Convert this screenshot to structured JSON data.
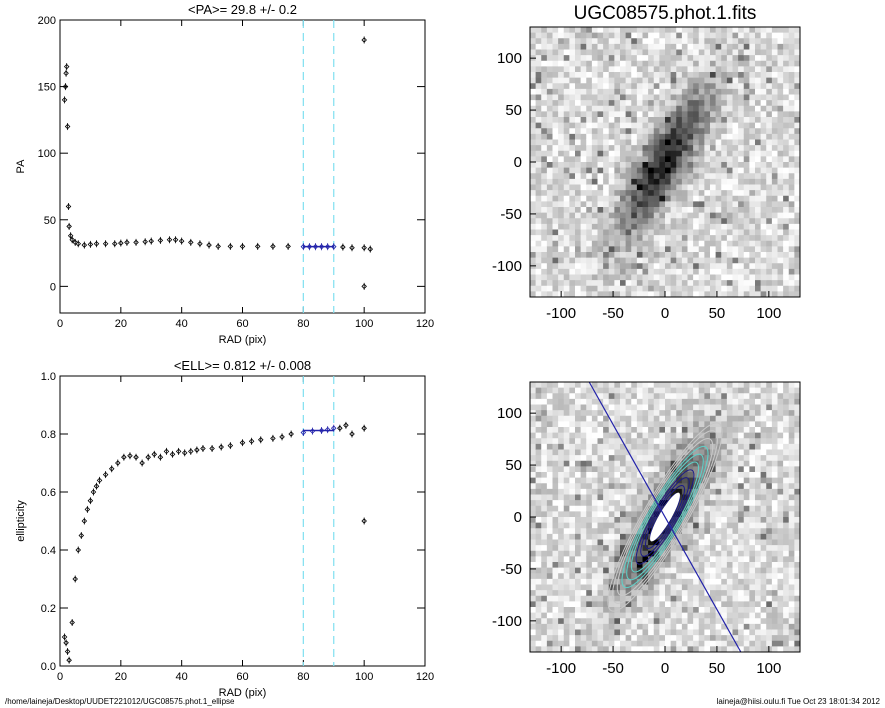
{
  "chart_data": [
    {
      "type": "scatter",
      "title": "<PA>=  29.8 +/-   0.2",
      "xlabel": "RAD (pix)",
      "ylabel": "PA",
      "xlim": [
        0,
        120
      ],
      "ylim": [
        -20,
        200
      ],
      "xticks": [
        0,
        20,
        40,
        60,
        80,
        100,
        120
      ],
      "yticks": [
        0,
        50,
        100,
        150,
        200
      ],
      "vlines": [
        80,
        90
      ],
      "fit_range": [
        80,
        90
      ],
      "fit_value": 29.8,
      "points": [
        [
          1.5,
          140
        ],
        [
          1.8,
          150
        ],
        [
          2.0,
          160
        ],
        [
          2.2,
          165
        ],
        [
          2.5,
          120
        ],
        [
          2.8,
          60
        ],
        [
          3.0,
          45
        ],
        [
          3.5,
          38
        ],
        [
          4,
          35
        ],
        [
          5,
          33
        ],
        [
          6,
          32
        ],
        [
          8,
          31
        ],
        [
          10,
          31.5
        ],
        [
          12,
          32
        ],
        [
          15,
          32
        ],
        [
          18,
          32
        ],
        [
          20,
          32.5
        ],
        [
          22,
          33
        ],
        [
          25,
          33
        ],
        [
          28,
          33.5
        ],
        [
          30,
          34
        ],
        [
          33,
          34.5
        ],
        [
          36,
          35
        ],
        [
          38,
          35
        ],
        [
          40,
          34
        ],
        [
          43,
          33
        ],
        [
          46,
          32
        ],
        [
          49,
          31
        ],
        [
          52,
          30
        ],
        [
          56,
          30
        ],
        [
          60,
          30
        ],
        [
          65,
          30
        ],
        [
          70,
          30
        ],
        [
          75,
          30
        ],
        [
          80,
          29.8
        ],
        [
          82,
          29.8
        ],
        [
          84,
          29.8
        ],
        [
          86,
          29.8
        ],
        [
          88,
          29.8
        ],
        [
          90,
          29.8
        ],
        [
          93,
          29.5
        ],
        [
          96,
          29
        ],
        [
          100,
          29
        ],
        [
          100,
          0
        ],
        [
          100,
          185
        ],
        [
          102,
          28
        ]
      ]
    },
    {
      "type": "scatter",
      "title": "<ELL>= 0.812 +/-  0.008",
      "xlabel": "RAD (pix)",
      "ylabel": "ellipticity",
      "xlim": [
        0,
        120
      ],
      "ylim": [
        0,
        1.0
      ],
      "xticks": [
        0,
        20,
        40,
        60,
        80,
        100,
        120
      ],
      "yticks": [
        0.0,
        0.2,
        0.4,
        0.6,
        0.8,
        1.0
      ],
      "vlines": [
        80,
        90
      ],
      "fit_range": [
        80,
        90
      ],
      "fit_value": 0.812,
      "points": [
        [
          1.5,
          0.1
        ],
        [
          2,
          0.08
        ],
        [
          2.5,
          0.05
        ],
        [
          3,
          0.02
        ],
        [
          4,
          0.15
        ],
        [
          5,
          0.3
        ],
        [
          6,
          0.4
        ],
        [
          7,
          0.45
        ],
        [
          8,
          0.5
        ],
        [
          9,
          0.54
        ],
        [
          10,
          0.57
        ],
        [
          11,
          0.6
        ],
        [
          12,
          0.62
        ],
        [
          13,
          0.64
        ],
        [
          15,
          0.66
        ],
        [
          17,
          0.68
        ],
        [
          19,
          0.7
        ],
        [
          21,
          0.72
        ],
        [
          23,
          0.725
        ],
        [
          25,
          0.72
        ],
        [
          27,
          0.7
        ],
        [
          29,
          0.72
        ],
        [
          31,
          0.73
        ],
        [
          33,
          0.72
        ],
        [
          35,
          0.74
        ],
        [
          37,
          0.73
        ],
        [
          39,
          0.74
        ],
        [
          41,
          0.735
        ],
        [
          43,
          0.74
        ],
        [
          45,
          0.745
        ],
        [
          47,
          0.75
        ],
        [
          50,
          0.75
        ],
        [
          53,
          0.755
        ],
        [
          56,
          0.76
        ],
        [
          60,
          0.77
        ],
        [
          63,
          0.775
        ],
        [
          66,
          0.78
        ],
        [
          70,
          0.785
        ],
        [
          73,
          0.79
        ],
        [
          76,
          0.8
        ],
        [
          80,
          0.805
        ],
        [
          83,
          0.81
        ],
        [
          86,
          0.812
        ],
        [
          88,
          0.815
        ],
        [
          90,
          0.82
        ],
        [
          92,
          0.82
        ],
        [
          94,
          0.83
        ],
        [
          96,
          0.8
        ],
        [
          100,
          0.82
        ],
        [
          100,
          0.5
        ]
      ]
    },
    {
      "type": "heatmap",
      "title": "UGC08575.phot.1.fits",
      "xlim": [
        -130,
        130
      ],
      "ylim": [
        -130,
        130
      ],
      "xticks": [
        -100,
        -50,
        0,
        50,
        100
      ],
      "yticks": [
        -100,
        -50,
        0,
        50,
        100
      ],
      "galaxy_pa_deg": 30,
      "galaxy_ellipticity": 0.812
    },
    {
      "type": "heatmap",
      "xlim": [
        -130,
        130
      ],
      "ylim": [
        -130,
        130
      ],
      "xticks": [
        -100,
        -50,
        0,
        50,
        100
      ],
      "yticks": [
        -100,
        -50,
        0,
        50,
        100
      ],
      "contour_colors": [
        "#1a1a8a",
        "#5fd0c8",
        "#c8c8c8"
      ]
    }
  ],
  "footer": {
    "left": "/home/laineja/Desktop/UUDET221012/UGC08575.phot.1_ellipse",
    "right": "laineja@hiisi.oulu.fi  Tue Oct 23 18:01:34 2012"
  },
  "colors": {
    "vline": "#7fe0f0",
    "fit": "#2222aa"
  }
}
